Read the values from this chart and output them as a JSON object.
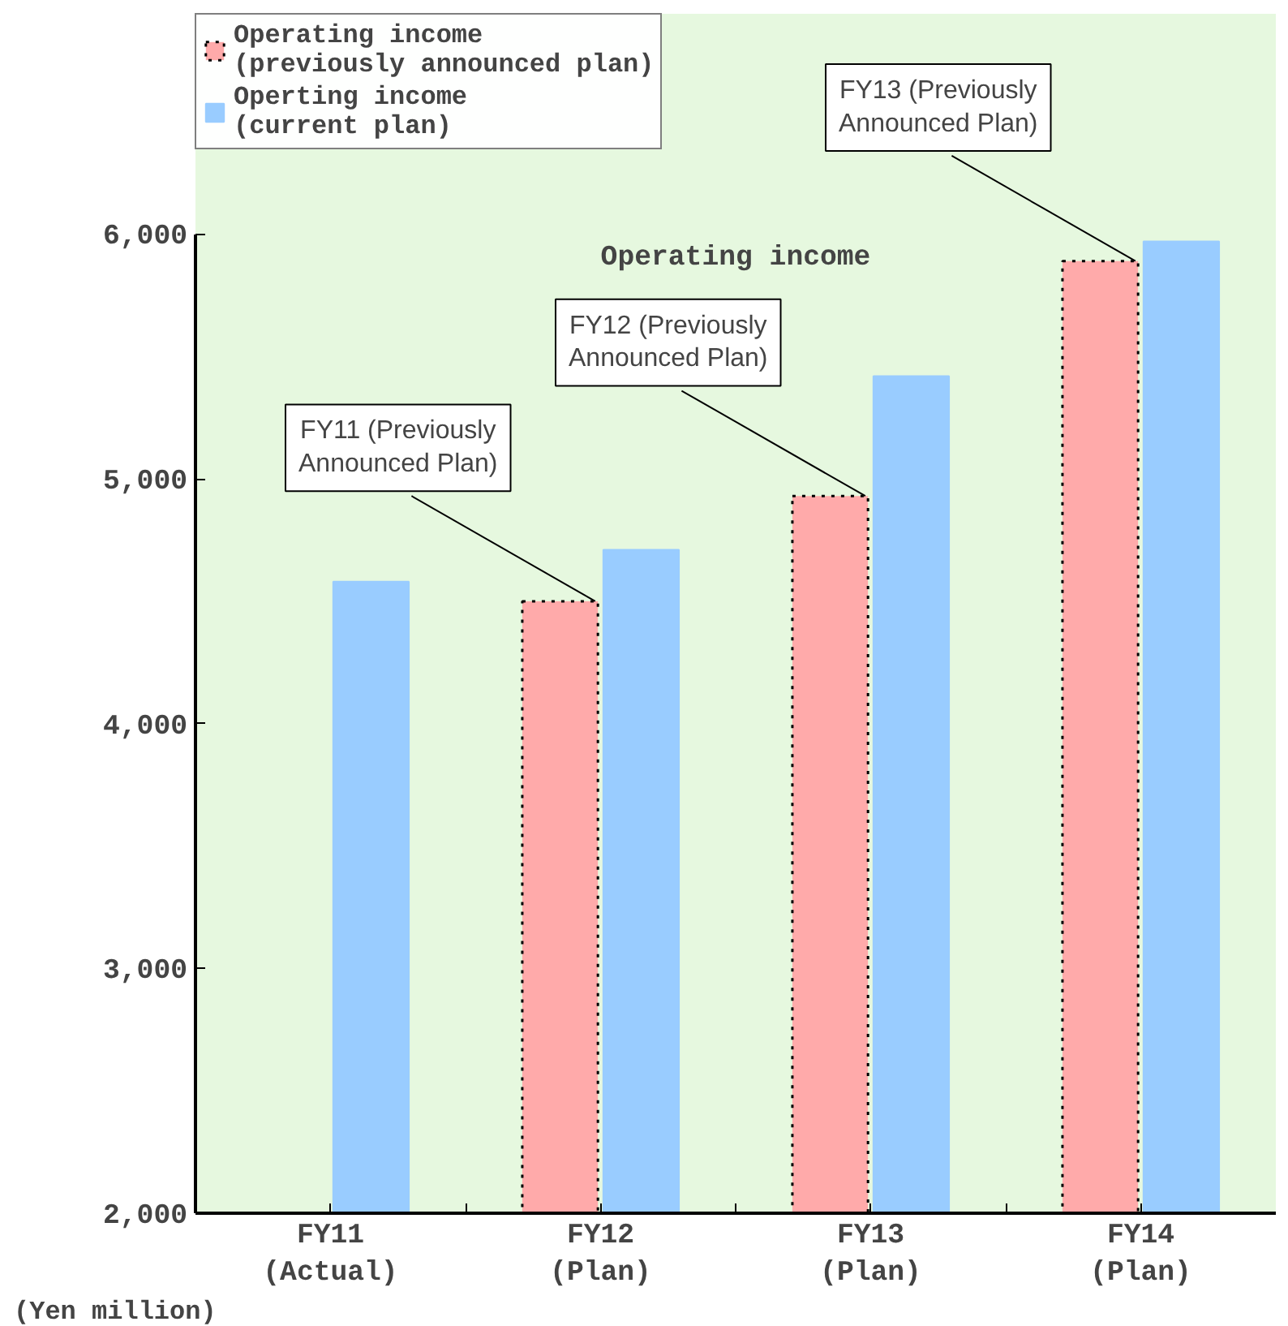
{
  "chart_data": {
    "type": "bar",
    "title": "Operating income",
    "ylabel": "(Yen million)",
    "categories": [
      "FY11\n(Actual)",
      "FY12\n(Plan)",
      "FY13\n(Plan)",
      "FY14\n(Plan)"
    ],
    "series": [
      {
        "name": "Operating income\n(previously announced plan)",
        "color": "#ffaaaa",
        "line_style": "dotted",
        "values": [
          null,
          4500,
          4930,
          5890
        ]
      },
      {
        "name": "Operting income\n(current plan)",
        "color": "#99ccff",
        "values": [
          4580,
          4710,
          5420,
          5970
        ]
      }
    ],
    "ylim": [
      2000,
      6900
    ],
    "yticks": [
      {
        "value": 2000,
        "label": "2,000"
      },
      {
        "value": 3000,
        "label": "3,000"
      },
      {
        "value": 4000,
        "label": "4,000"
      },
      {
        "value": 5000,
        "label": "5,000"
      },
      {
        "value": 6000,
        "label": "6,000"
      }
    ],
    "annotations": [
      {
        "text": "FY11 (Previously\nAnnounced Plan)",
        "x": "FY12\n(Plan)",
        "y": 4500
      },
      {
        "text": "FY12 (Previously\nAnnounced Plan)",
        "x": "FY13\n(Plan)",
        "y": 4930
      },
      {
        "text": "FY13 (Previously\nAnnounced Plan)",
        "x": "FY14\n(Plan)",
        "y": 5890
      }
    ],
    "grid": false,
    "legend": "top left"
  }
}
